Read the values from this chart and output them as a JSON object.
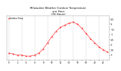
{
  "title": "Milwaukee Weather Outdoor Temperature\nper Hour\n(24 Hours)",
  "title_fontsize": 2.8,
  "background_color": "#ffffff",
  "plot_bg_color": "#ffffff",
  "line_color": "#ff0000",
  "marker_color": "#ff0000",
  "marker_size": 0.8,
  "grid_color": "#bbbbbb",
  "tick_color": "#000000",
  "tick_fontsize": 2.2,
  "hours": [
    0,
    1,
    2,
    3,
    4,
    5,
    6,
    7,
    8,
    9,
    10,
    11,
    12,
    13,
    14,
    15,
    16,
    17,
    18,
    19,
    20,
    21,
    22,
    23
  ],
  "temperatures": [
    3.2,
    3.1,
    3.0,
    3.0,
    2.9,
    2.9,
    3.0,
    3.2,
    3.6,
    4.2,
    4.8,
    5.3,
    5.7,
    5.9,
    6.1,
    6.2,
    6.0,
    5.6,
    5.1,
    4.6,
    4.2,
    3.8,
    3.5,
    3.3
  ],
  "ylim": [
    2.5,
    6.8
  ],
  "yticks": [
    3.0,
    3.5,
    4.0,
    4.5,
    5.0,
    5.5,
    6.0,
    6.5
  ],
  "ytick_labels": [
    "3",
    "3.5",
    "4",
    "4.5",
    "5",
    "5.5",
    "6",
    "6.5"
  ],
  "vgrid_hours": [
    0,
    3,
    6,
    9,
    12,
    15,
    18,
    21
  ],
  "legend_label": "Outdoor Temp",
  "legend_fontsize": 2.0,
  "linewidth": 0.4
}
